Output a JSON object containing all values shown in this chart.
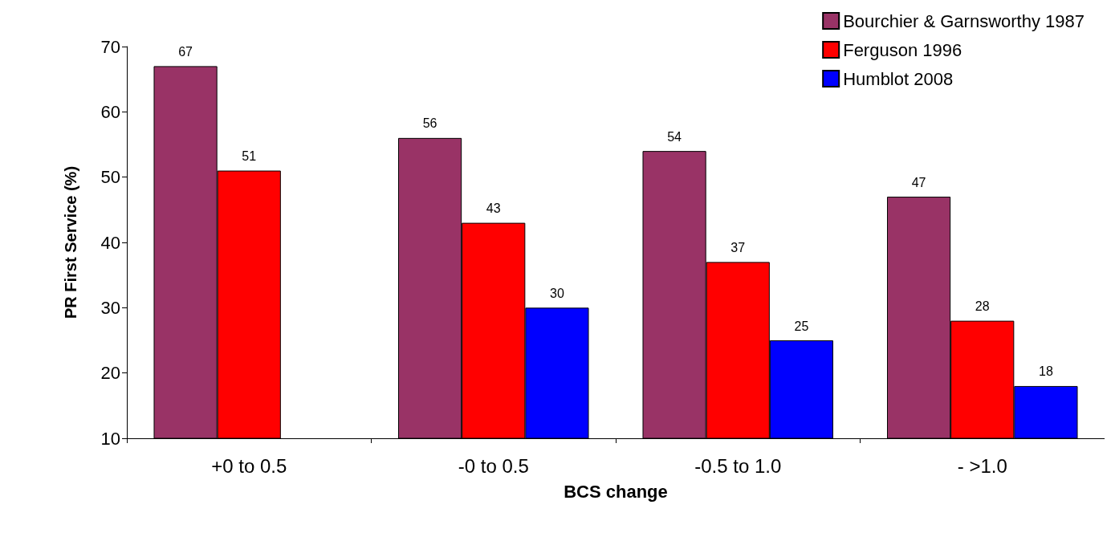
{
  "chart_data": {
    "type": "bar",
    "xlabel": "BCS change",
    "ylabel": "PR First Service (%)",
    "categories": [
      "+0 to 0.5",
      "-0 to 0.5",
      "-0.5 to 1.0",
      "- >1.0"
    ],
    "series": [
      {
        "name": "Bourchier & Garnsworthy 1987",
        "color": "#993366",
        "values": [
          67,
          56,
          54,
          47
        ]
      },
      {
        "name": "Ferguson 1996",
        "color": "#ff0000",
        "values": [
          51,
          43,
          37,
          28
        ]
      },
      {
        "name": "Humblot 2008",
        "color": "#0000ff",
        "values": [
          null,
          30,
          25,
          18
        ]
      }
    ],
    "ylim": [
      10,
      70
    ],
    "yticks": [
      10,
      20,
      30,
      40,
      50,
      60,
      70
    ],
    "grid": false,
    "legend": "top right",
    "data_labels": true
  }
}
